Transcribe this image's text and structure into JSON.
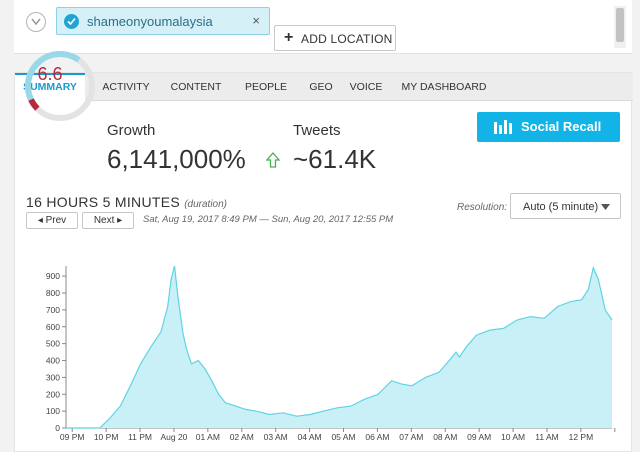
{
  "topbar": {
    "chip_label": "shameonyoumalaysia",
    "chip_remove": "×",
    "add_location_icon": "+",
    "add_location_label": "ADD LOCATION"
  },
  "tabs": [
    "SUMMARY",
    "ACTIVITY",
    "CONTENT",
    "PEOPLE",
    "GEO",
    "VOICE",
    "MY DASHBOARD"
  ],
  "summary": {
    "gauge_value": "6.6",
    "gauge_fraction": 0.66,
    "growth_label": "Growth",
    "growth_value": "6,141,000%",
    "tweets_label": "Tweets",
    "tweets_value": "~61.4K",
    "social_recall_label": "Social Recall"
  },
  "period": {
    "duration": "16 HOURS  5 MINUTES",
    "duration_tag": "(duration)",
    "prev_label": "◂ Prev",
    "next_label": "Next ▸",
    "range": "Sat, Aug 19, 2017 8:49 PM — Sun, Aug 20, 2017 12:55 PM",
    "resolution_label": "Resolution:",
    "resolution_value": "Auto (5 minute)"
  },
  "colors": {
    "accent": "#1a9bcc",
    "button": "#12b3e6",
    "gauge_red": "#b52b3a",
    "area_fill": "#c9f0f6",
    "area_line": "#5fd3e4",
    "up_arrow": "#4caf50"
  },
  "icons": {
    "collapse": "chevron-down-icon",
    "chip_check": "check-circle-icon",
    "social_recall": "bar-chart-icon",
    "growth_trend": "arrow-up-icon",
    "resolution_dropdown": "caret-down-icon"
  },
  "chart_data": {
    "type": "area",
    "yticks": [
      "0",
      "100",
      "200",
      "300",
      "400",
      "500",
      "600",
      "700",
      "800",
      "900"
    ],
    "ylim": [
      0,
      960
    ],
    "xlim": [
      0,
      16.1
    ],
    "x_tick_positions": [
      0.183,
      1.183,
      2.183,
      3.183,
      4.183,
      5.183,
      6.183,
      7.183,
      8.183,
      9.183,
      10.183,
      11.183,
      12.183,
      13.183,
      14.183,
      15.183,
      16.183
    ],
    "xticks": [
      "09 PM",
      "10 PM",
      "11 PM",
      "Aug 20",
      "01 AM",
      "02 AM",
      "03 AM",
      "04 AM",
      "05 AM",
      "06 AM",
      "07 AM",
      "08 AM",
      "09 AM",
      "10 AM",
      "11 AM",
      "12 PM",
      ""
    ],
    "x": [
      0,
      1.0,
      1.1,
      1.3,
      1.6,
      1.9,
      2.2,
      2.5,
      2.8,
      3.0,
      3.1,
      3.2,
      3.3,
      3.45,
      3.55,
      3.7,
      3.9,
      4.1,
      4.3,
      4.5,
      4.7,
      5.0,
      5.3,
      5.6,
      6.0,
      6.4,
      6.8,
      7.2,
      7.6,
      8.0,
      8.4,
      8.8,
      9.2,
      9.6,
      9.9,
      10.2,
      10.6,
      11.0,
      11.3,
      11.5,
      11.6,
      11.8,
      12.1,
      12.5,
      12.9,
      13.3,
      13.7,
      14.1,
      14.5,
      14.9,
      15.2,
      15.4,
      15.55,
      15.7,
      15.9,
      16.1
    ],
    "y": [
      0,
      0,
      20,
      60,
      130,
      250,
      380,
      480,
      570,
      720,
      880,
      960,
      780,
      560,
      470,
      380,
      400,
      350,
      280,
      200,
      150,
      130,
      110,
      100,
      80,
      90,
      70,
      80,
      100,
      120,
      130,
      170,
      200,
      280,
      260,
      250,
      300,
      330,
      400,
      450,
      420,
      480,
      550,
      580,
      590,
      640,
      660,
      650,
      720,
      750,
      760,
      820,
      950,
      880,
      700,
      640
    ]
  }
}
